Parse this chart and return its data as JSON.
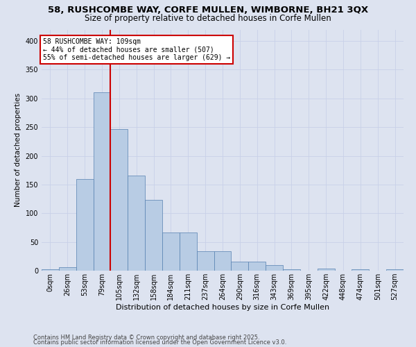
{
  "title_line1": "58, RUSHCOMBE WAY, CORFE MULLEN, WIMBORNE, BH21 3QX",
  "title_line2": "Size of property relative to detached houses in Corfe Mullen",
  "xlabel": "Distribution of detached houses by size in Corfe Mullen",
  "ylabel": "Number of detached properties",
  "footnote1": "Contains HM Land Registry data © Crown copyright and database right 2025.",
  "footnote2": "Contains public sector information licensed under the Open Government Licence v3.0.",
  "bin_labels": [
    "0sqm",
    "26sqm",
    "53sqm",
    "79sqm",
    "105sqm",
    "132sqm",
    "158sqm",
    "184sqm",
    "211sqm",
    "237sqm",
    "264sqm",
    "290sqm",
    "316sqm",
    "343sqm",
    "369sqm",
    "395sqm",
    "422sqm",
    "448sqm",
    "474sqm",
    "501sqm",
    "527sqm"
  ],
  "bar_heights": [
    2,
    6,
    160,
    311,
    247,
    165,
    123,
    67,
    66,
    34,
    34,
    16,
    16,
    10,
    3,
    0,
    4,
    0,
    3,
    0,
    2
  ],
  "bar_color": "#b8cce4",
  "bar_edge_color": "#5580b0",
  "grid_color": "#c8d0e8",
  "background_color": "#dde3f0",
  "vline_x": 4.0,
  "vline_color": "#cc0000",
  "annotation_text": "58 RUSHCOMBE WAY: 109sqm\n← 44% of detached houses are smaller (507)\n55% of semi-detached houses are larger (629) →",
  "annotation_box_facecolor": "#ffffff",
  "annotation_box_edgecolor": "#cc0000",
  "ylim": [
    0,
    420
  ],
  "yticks": [
    0,
    50,
    100,
    150,
    200,
    250,
    300,
    350,
    400
  ],
  "title_fontsize": 9.5,
  "subtitle_fontsize": 8.5,
  "xlabel_fontsize": 8,
  "ylabel_fontsize": 7.5,
  "tick_fontsize": 7,
  "annotation_fontsize": 7,
  "footnote_fontsize": 6
}
